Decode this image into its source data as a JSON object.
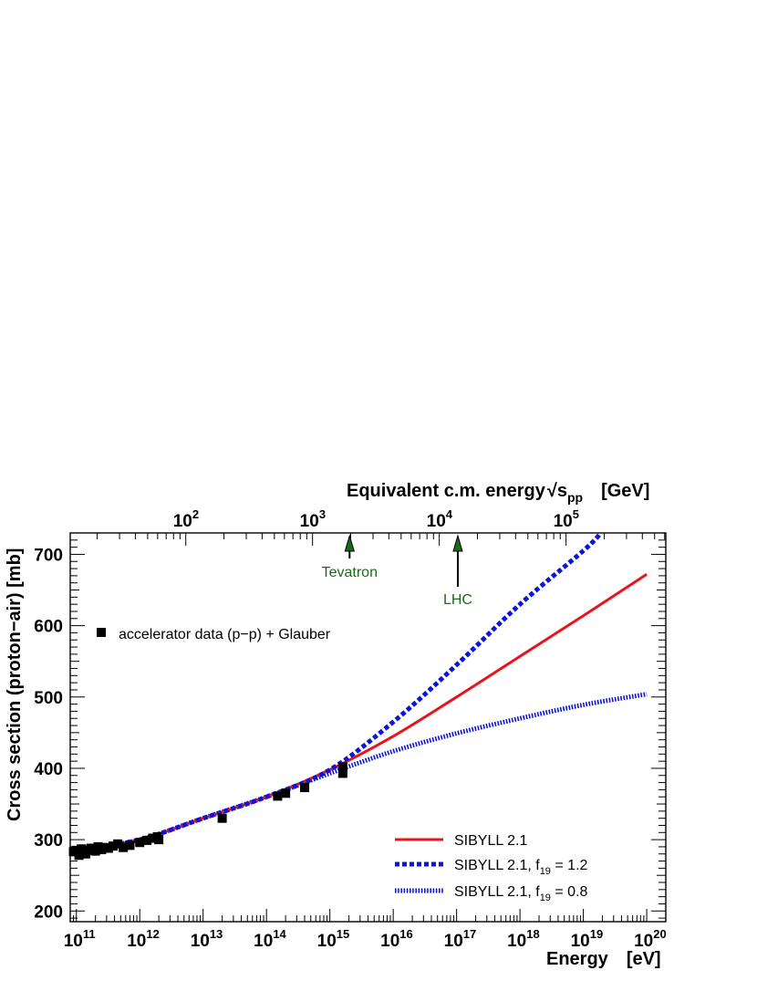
{
  "chart_data": {
    "type": "line",
    "xlabel": "Energy",
    "xlabel_unit": "[eV]",
    "ylabel": "Cross section (proton−air)   [mb]",
    "top_xlabel": "Equivalent c.m. energy",
    "top_xlabel_sym": "√s",
    "top_xlabel_sub": "pp",
    "top_xlabel_unit": "[GeV]",
    "x_scale": "log",
    "xlim": [
      80000000000.0,
      2e+20
    ],
    "ylim": [
      185,
      730
    ],
    "x_ticks": [
      {
        "value": 100000000000.0,
        "base": "10",
        "exp": "11"
      },
      {
        "value": 1000000000000.0,
        "base": "10",
        "exp": "12"
      },
      {
        "value": 10000000000000.0,
        "base": "10",
        "exp": "13"
      },
      {
        "value": 100000000000000.0,
        "base": "10",
        "exp": "14"
      },
      {
        "value": 1000000000000000.0,
        "base": "10",
        "exp": "15"
      },
      {
        "value": 1e+16,
        "base": "10",
        "exp": "16"
      },
      {
        "value": 1e+17,
        "base": "10",
        "exp": "17"
      },
      {
        "value": 1e+18,
        "base": "10",
        "exp": "18"
      },
      {
        "value": 1e+19,
        "base": "10",
        "exp": "19"
      },
      {
        "value": 1e+20,
        "base": "10",
        "exp": "20"
      }
    ],
    "top_x_ticks": [
      {
        "value_gev": 100,
        "base": "10",
        "exp": "2"
      },
      {
        "value_gev": 1000,
        "base": "10",
        "exp": "3"
      },
      {
        "value_gev": 10000,
        "base": "10",
        "exp": "4"
      },
      {
        "value_gev": 100000,
        "base": "10",
        "exp": "5"
      }
    ],
    "y_ticks": [
      "200",
      "300",
      "400",
      "500",
      "600",
      "700"
    ],
    "annotations": [
      {
        "label": "Tevatron",
        "sqrt_s_gev": 1960,
        "color": "#1a6a1a"
      },
      {
        "label": "LHC",
        "sqrt_s_gev": 14000,
        "color": "#1a6a1a"
      }
    ],
    "series": [
      {
        "name": "accelerator data (p−p) + Glauber",
        "style": "markers",
        "color": "#000000",
        "x": [
          90000000000.0,
          100000000000.0,
          110000000000.0,
          120000000000.0,
          140000000000.0,
          150000000000.0,
          170000000000.0,
          200000000000.0,
          220000000000.0,
          250000000000.0,
          280000000000.0,
          320000000000.0,
          380000000000.0,
          450000000000.0,
          550000000000.0,
          700000000000.0,
          1000000000000.0,
          1300000000000.0,
          1600000000000.0,
          1900000000000.0,
          2000000000000.0,
          20000000000000.0,
          150000000000000.0,
          200000000000000.0,
          400000000000000.0,
          1600000000000000.0,
          1600000000000000.0
        ],
        "y": [
          283,
          285,
          278,
          287,
          280,
          285,
          288,
          284,
          290,
          286,
          289,
          288,
          291,
          294,
          289,
          292,
          296,
          299,
          302,
          304,
          300,
          330,
          361,
          365,
          373,
          393,
          402
        ]
      },
      {
        "name": "SIBYLL 2.1",
        "style": "solid",
        "color": "#e8141c",
        "x": [
          100000000000.0,
          1000000000000.0,
          10000000000000.0,
          100000000000000.0,
          1000000000000000.0,
          1e+16,
          1e+17,
          1e+18,
          1e+19,
          1e+20
        ],
        "y": [
          285,
          300,
          330,
          360,
          398,
          445,
          500,
          557,
          614,
          672
        ]
      },
      {
        "name": "SIBYLL 2.1, f",
        "name_sub": "19",
        "name_suffix": " = 1.2",
        "style": "dashed",
        "color": "#0a14dc",
        "x": [
          100000000000.0,
          1000000000000.0,
          10000000000000.0,
          100000000000000.0,
          1000000000000000.0,
          1e+16,
          1e+17,
          1e+18,
          1e+19,
          1.9e+19
        ],
        "y": [
          285,
          300,
          330,
          360,
          398,
          465,
          545,
          630,
          705,
          730
        ]
      },
      {
        "name": "SIBYLL 2.1, f",
        "name_sub": "19",
        "name_suffix": " = 0.8",
        "style": "dotted",
        "color": "#0a14dc",
        "x": [
          100000000000.0,
          1000000000000.0,
          10000000000000.0,
          100000000000000.0,
          1000000000000000.0,
          1e+16,
          1e+17,
          1e+18,
          1e+19,
          1e+20
        ],
        "y": [
          285,
          300,
          330,
          360,
          393,
          424,
          449,
          470,
          489,
          504
        ]
      }
    ],
    "legend": [
      {
        "text": "accelerator data (p−p) + Glauber",
        "placement": "top-left"
      },
      {
        "text": "SIBYLL 2.1",
        "placement": "bottom-right"
      },
      {
        "text_main": "SIBYLL 2.1, f",
        "text_sub": "19",
        "text_tail": " = 1.2",
        "placement": "bottom-right"
      },
      {
        "text_main": "SIBYLL 2.1, f",
        "text_sub": "19",
        "text_tail": " = 0.8",
        "placement": "bottom-right"
      }
    ]
  }
}
